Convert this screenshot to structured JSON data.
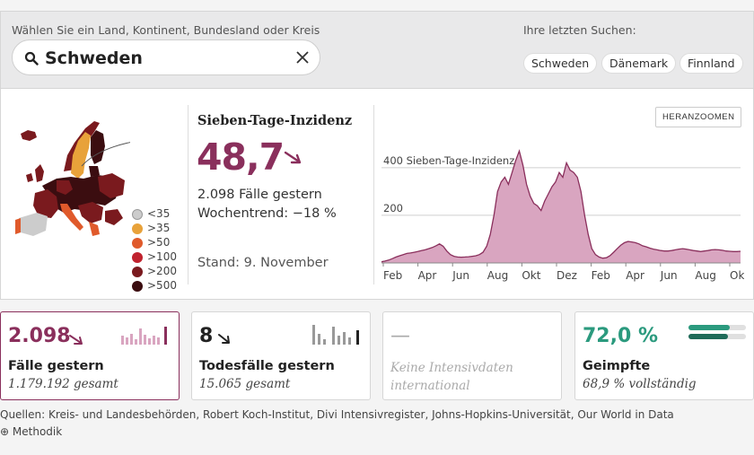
{
  "search": {
    "hint": "Wählen Sie ein Land, Kontinent, Bundesland oder Kreis",
    "value": "Schweden",
    "recent_title": "Ihre letzten Suchen:",
    "recent": [
      "Schweden",
      "Dänemark",
      "Finnland"
    ]
  },
  "incidence": {
    "title": "Sieben-Tage-Inzidenz",
    "value": "48,7",
    "cases_yesterday": "2.098 Fälle gestern",
    "trend": "Wochentrend: −18 %",
    "date": "Stand: 9. November",
    "zoom_label": "HERANZOOMEN"
  },
  "legend": [
    {
      "label": "<35",
      "color": "#cccccc"
    },
    {
      "label": ">35",
      "color": "#e8a23a"
    },
    {
      "label": ">50",
      "color": "#e05a2b"
    },
    {
      "label": ">100",
      "color": "#c0222e"
    },
    {
      "label": ">200",
      "color": "#7a1a1e"
    },
    {
      "label": ">500",
      "color": "#3b0d10"
    }
  ],
  "chart_data": {
    "type": "area",
    "title": "",
    "annotation": "400 Sieben-Tage-Inzidenz",
    "gridlines": [
      {
        "value": 400,
        "label": "400 Sieben-Tage-Inzidenz"
      },
      {
        "value": 200,
        "label": "200"
      }
    ],
    "ylim": [
      0,
      520
    ],
    "x_ticks": [
      "Feb",
      "Apr",
      "Jun",
      "Aug",
      "Okt",
      "Dez",
      "Feb",
      "Apr",
      "Jun",
      "Aug",
      "Okt"
    ],
    "x": [
      0,
      4,
      8,
      12,
      16,
      20,
      24,
      28,
      32,
      36,
      40,
      44,
      48,
      52,
      56,
      60,
      64,
      68,
      72,
      76,
      80,
      84,
      88,
      92,
      96,
      100,
      104,
      108,
      112,
      116,
      120,
      124,
      128,
      132,
      136,
      140,
      144,
      148,
      152,
      156,
      160,
      164,
      168,
      172,
      176,
      180,
      184,
      188,
      192,
      196,
      200,
      204,
      208,
      212,
      216,
      220,
      224,
      228,
      232,
      236,
      240,
      244,
      248,
      252,
      256,
      260,
      264,
      268,
      272,
      276,
      280,
      284,
      288,
      292,
      296,
      300,
      304,
      308,
      312,
      316,
      320,
      324,
      328,
      332,
      336,
      340,
      344,
      348,
      352,
      356,
      360,
      364,
      368,
      372,
      376,
      380,
      384,
      388,
      392,
      396
    ],
    "values": [
      5,
      8,
      12,
      18,
      25,
      30,
      35,
      40,
      42,
      45,
      48,
      52,
      55,
      60,
      65,
      72,
      80,
      70,
      50,
      35,
      28,
      25,
      24,
      25,
      26,
      28,
      30,
      35,
      45,
      70,
      120,
      200,
      300,
      340,
      360,
      330,
      380,
      430,
      470,
      410,
      330,
      280,
      250,
      240,
      220,
      260,
      290,
      320,
      340,
      380,
      360,
      420,
      390,
      380,
      360,
      300,
      200,
      120,
      60,
      35,
      25,
      20,
      22,
      30,
      45,
      60,
      75,
      85,
      90,
      88,
      85,
      80,
      72,
      68,
      62,
      58,
      55,
      52,
      50,
      50,
      52,
      55,
      58,
      60,
      58,
      55,
      52,
      50,
      48,
      50,
      52,
      55,
      56,
      55,
      53,
      50,
      49,
      48,
      48,
      49
    ]
  },
  "cards": [
    {
      "value": "2.098",
      "label": "Fälle gestern",
      "sub": "1.179.192 gesamt",
      "color": "#8a2f5c"
    },
    {
      "value": "8",
      "label": "Todesfälle gestern",
      "sub": "15.065 gesamt",
      "color": "#222222"
    },
    {
      "value": "—",
      "label": "",
      "sub": "Keine Intensivdaten international",
      "color": "#aaaaaa"
    },
    {
      "value": "72,0 %",
      "label": "Geimpfte",
      "sub": "68,9 % vollständig",
      "color": "#2b9a7e"
    }
  ],
  "vaccination": {
    "first_dose": 72.0,
    "full": 68.9
  },
  "footer": {
    "sources": "Quellen: Kreis- und Landesbehörden, Robert Koch-Institut, Divi Intensivregister, Johns-Hopkins-Universität, Our World in Data",
    "method": "Methodik"
  }
}
